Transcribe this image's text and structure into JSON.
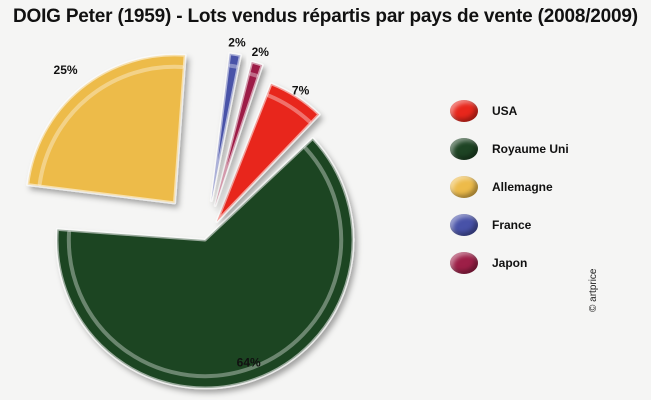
{
  "chart_data": {
    "type": "pie",
    "title": "DOIG Peter (1959) - Lots vendus répartis par pays de vente (2008/2009)",
    "legend_position": "right",
    "slices": [
      {
        "name": "USA",
        "value": 7,
        "label": "7%",
        "color": "#e8271c"
      },
      {
        "name": "Royaume Uni",
        "value": 64,
        "label": "64%",
        "color": "#1e4424"
      },
      {
        "name": "Allemagne",
        "value": 25,
        "label": "25%",
        "color": "#edbb4a"
      },
      {
        "name": "France",
        "value": 2,
        "label": "2%",
        "color": "#4852a8"
      },
      {
        "name": "Japon",
        "value": 2,
        "label": "2%",
        "color": "#9d1f47"
      }
    ]
  },
  "credit": "© artprice"
}
